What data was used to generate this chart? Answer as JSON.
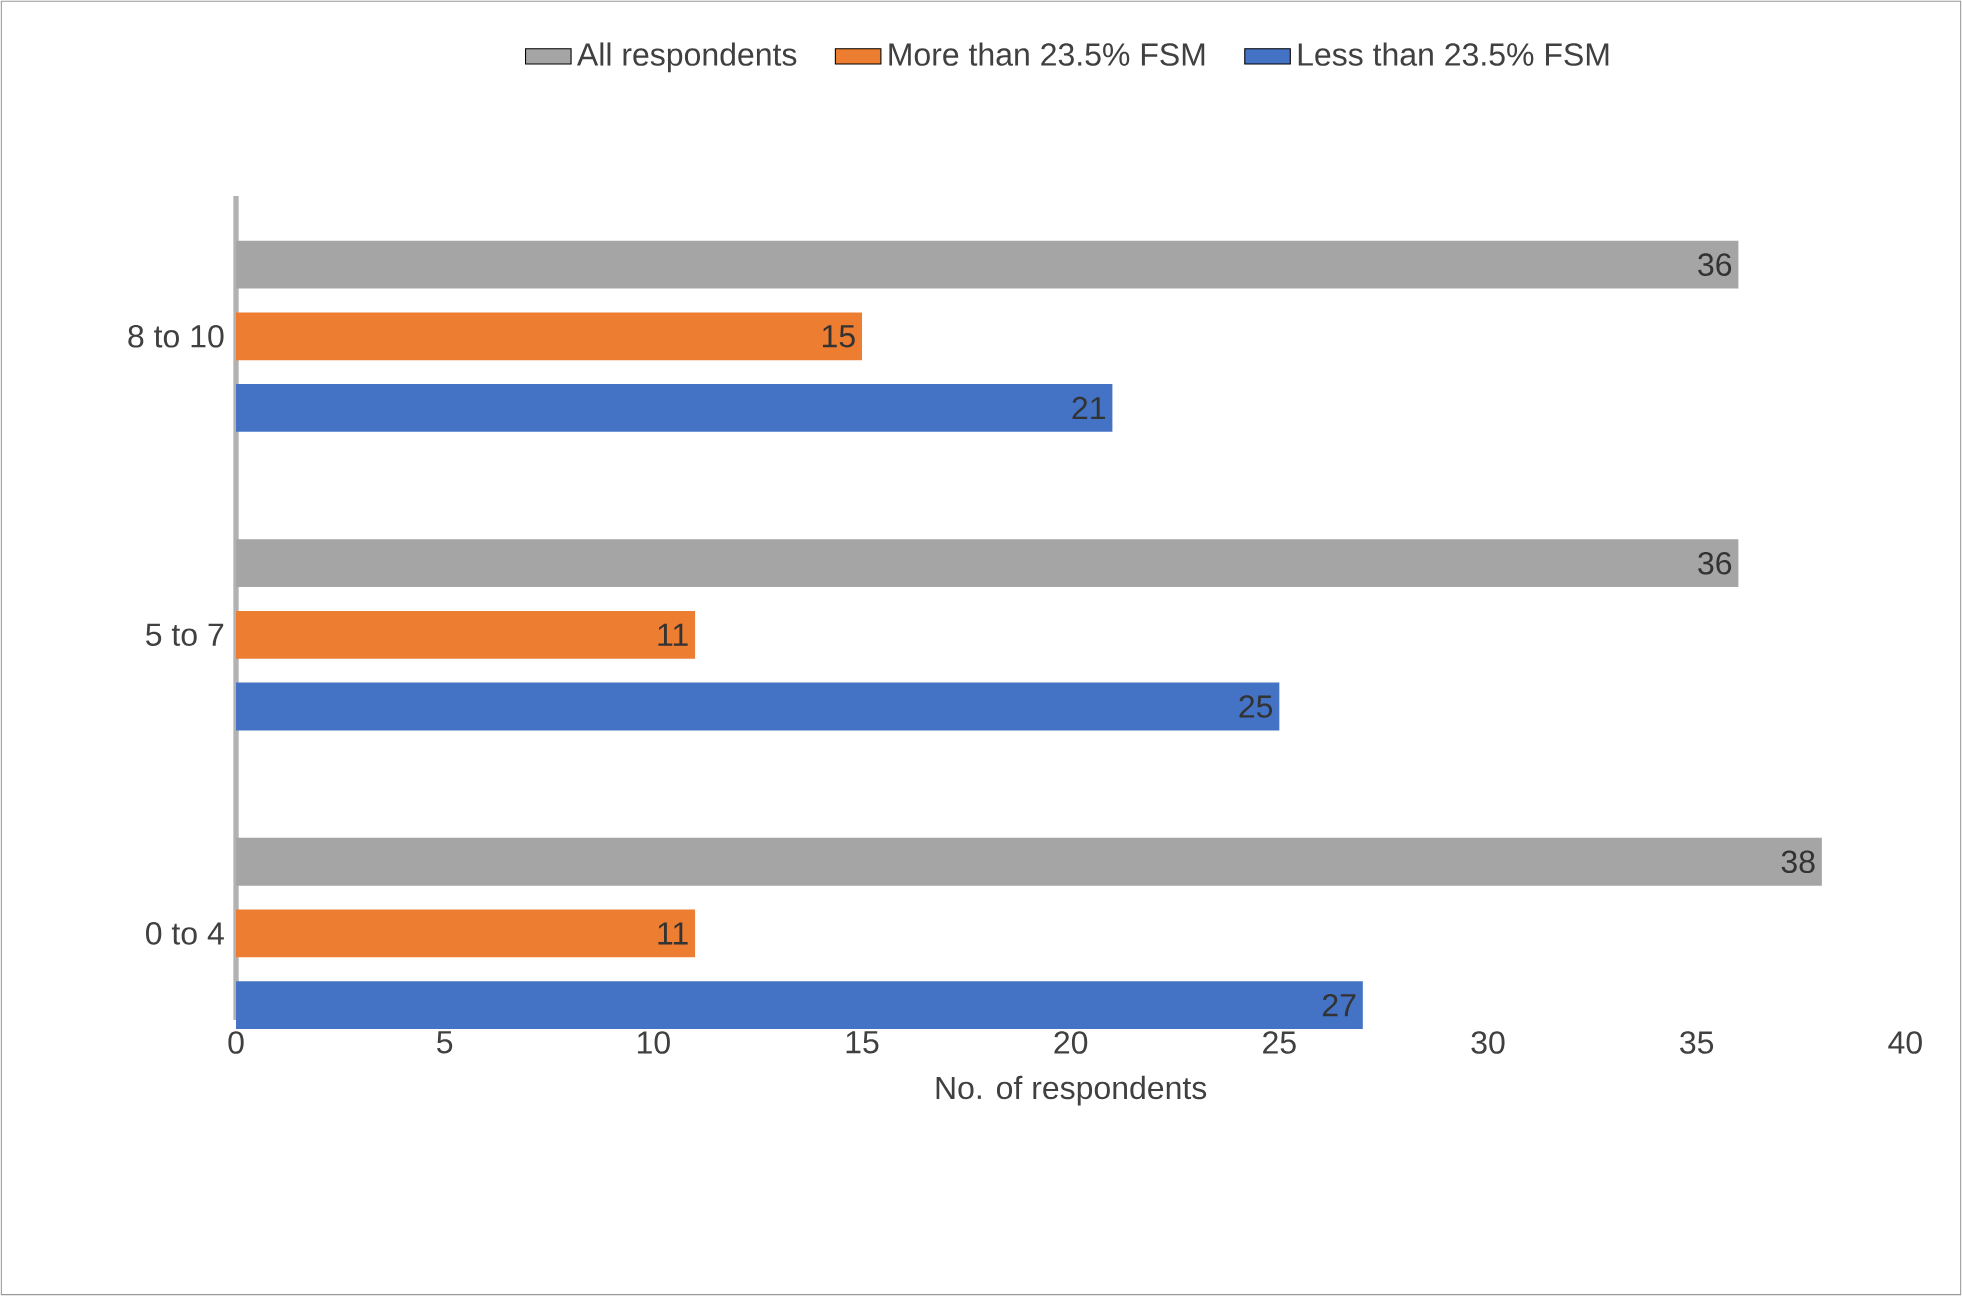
{
  "chart_data": {
    "type": "bar",
    "orientation": "horizontal",
    "categories": [
      "8 to 10",
      "5 to 7",
      "0 to 4"
    ],
    "series": [
      {
        "name": "All respondents",
        "color": "#a5a5a5",
        "values": [
          36,
          36,
          38
        ]
      },
      {
        "name": "More than 23.5% FSM",
        "color": "#ed7d31",
        "values": [
          15,
          11,
          11
        ]
      },
      {
        "name": "Less than 23.5% FSM",
        "color": "#4472c4",
        "values": [
          21,
          25,
          27
        ]
      }
    ],
    "xlabel": "No. of respondents",
    "xlim": [
      0,
      40
    ],
    "xticks": [
      0,
      5,
      10,
      15,
      20,
      25,
      30,
      35,
      40
    ],
    "data_labels": true,
    "legend": "top",
    "grid": false
  }
}
